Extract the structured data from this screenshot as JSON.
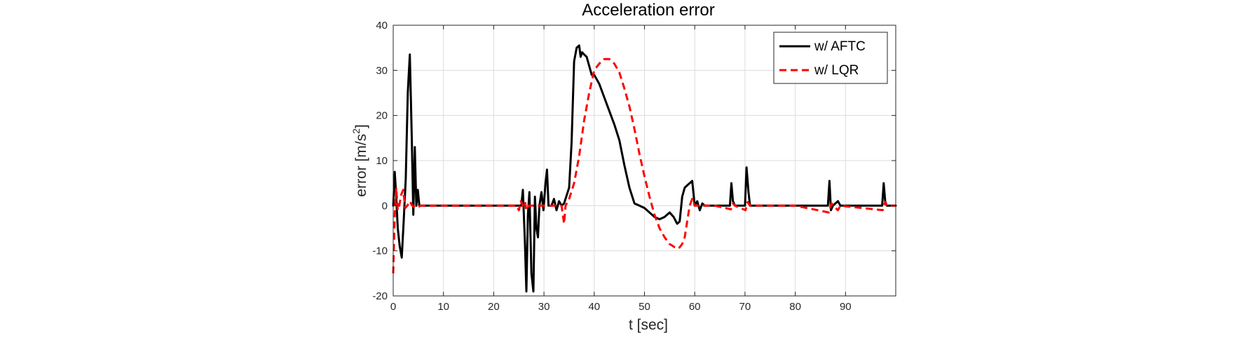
{
  "chart_data": {
    "type": "line",
    "title": "Acceleration error",
    "xlabel": "t [sec]",
    "ylabel": "error [m/s",
    "ylabel_sup": "2",
    "ylabel_close": "]",
    "xlim": [
      0,
      100
    ],
    "ylim": [
      -20,
      40
    ],
    "xticks": [
      0,
      10,
      20,
      30,
      40,
      50,
      60,
      70,
      80,
      90
    ],
    "yticks": [
      -20,
      -10,
      0,
      10,
      20,
      30,
      40
    ],
    "grid": true,
    "legend_position": "top-right",
    "series": [
      {
        "name": "w/ AFTC",
        "color": "#000000",
        "style": "solid",
        "points": [
          [
            0,
            0
          ],
          [
            0.3,
            7.5
          ],
          [
            0.6,
            2
          ],
          [
            0.9,
            -5
          ],
          [
            1.3,
            -9
          ],
          [
            1.7,
            -11.5
          ],
          [
            2.1,
            -3
          ],
          [
            2.5,
            6
          ],
          [
            2.9,
            25
          ],
          [
            3.3,
            33.5
          ],
          [
            3.7,
            15
          ],
          [
            4.0,
            -2
          ],
          [
            4.3,
            13
          ],
          [
            4.6,
            0
          ],
          [
            4.9,
            3.5
          ],
          [
            5.2,
            0
          ],
          [
            8,
            0
          ],
          [
            12,
            0
          ],
          [
            16,
            0
          ],
          [
            20,
            0
          ],
          [
            24,
            0
          ],
          [
            25.5,
            0
          ],
          [
            25.8,
            3.5
          ],
          [
            26.2,
            -8
          ],
          [
            26.5,
            -19
          ],
          [
            26.8,
            -2
          ],
          [
            27.1,
            3
          ],
          [
            27.5,
            -15
          ],
          [
            27.9,
            -19
          ],
          [
            28.2,
            2
          ],
          [
            28.5,
            -5
          ],
          [
            28.8,
            -7
          ],
          [
            29.1,
            0
          ],
          [
            29.5,
            3
          ],
          [
            29.9,
            -1
          ],
          [
            30.3,
            5
          ],
          [
            30.6,
            8
          ],
          [
            30.9,
            0
          ],
          [
            31.5,
            0
          ],
          [
            32,
            1.5
          ],
          [
            32.5,
            -1
          ],
          [
            33,
            1
          ],
          [
            33.5,
            0
          ],
          [
            34,
            0.5
          ],
          [
            35.0,
            4
          ],
          [
            35.5,
            14
          ],
          [
            36.0,
            32
          ],
          [
            36.5,
            35
          ],
          [
            37.0,
            35.5
          ],
          [
            37.3,
            33
          ],
          [
            37.6,
            34
          ],
          [
            38.0,
            33.5
          ],
          [
            38.5,
            33
          ],
          [
            39.0,
            31
          ],
          [
            39.5,
            29
          ],
          [
            40.0,
            29
          ],
          [
            41.0,
            27
          ],
          [
            42.0,
            24
          ],
          [
            43.0,
            21
          ],
          [
            44.0,
            18
          ],
          [
            45.0,
            14.5
          ],
          [
            46.0,
            9
          ],
          [
            47.0,
            4
          ],
          [
            48.0,
            0.5
          ],
          [
            49.0,
            0
          ],
          [
            50.0,
            -0.5
          ],
          [
            51.0,
            -1.5
          ],
          [
            52.0,
            -2.5
          ],
          [
            53.0,
            -3
          ],
          [
            54.0,
            -2.5
          ],
          [
            55.0,
            -1.5
          ],
          [
            55.8,
            -2.5
          ],
          [
            56.5,
            -4
          ],
          [
            57.0,
            -3.5
          ],
          [
            57.5,
            2
          ],
          [
            58.0,
            4
          ],
          [
            58.5,
            4.5
          ],
          [
            59.0,
            5
          ],
          [
            59.5,
            5.5
          ],
          [
            60.0,
            0
          ],
          [
            60.5,
            1
          ],
          [
            61.0,
            -1
          ],
          [
            61.5,
            0.5
          ],
          [
            62.0,
            0
          ],
          [
            66,
            0
          ],
          [
            67.0,
            0
          ],
          [
            67.3,
            5
          ],
          [
            67.6,
            1
          ],
          [
            68,
            0
          ],
          [
            70.0,
            0
          ],
          [
            70.3,
            8.5
          ],
          [
            70.7,
            3
          ],
          [
            71.0,
            0
          ],
          [
            75,
            0
          ],
          [
            80,
            0
          ],
          [
            86.5,
            0
          ],
          [
            86.8,
            5.5
          ],
          [
            87.1,
            -1
          ],
          [
            87.5,
            0
          ],
          [
            88.5,
            1
          ],
          [
            89,
            0
          ],
          [
            94,
            0
          ],
          [
            97.3,
            0
          ],
          [
            97.6,
            5
          ],
          [
            97.9,
            1
          ],
          [
            98.2,
            0
          ],
          [
            100,
            0
          ]
        ]
      },
      {
        "name": "w/ LQR",
        "color": "#ff0000",
        "style": "dashed",
        "points": [
          [
            0,
            -15
          ],
          [
            0.3,
            -2
          ],
          [
            0.6,
            4
          ],
          [
            0.9,
            -1
          ],
          [
            1.2,
            0
          ],
          [
            1.6,
            2.5
          ],
          [
            2.0,
            3.5
          ],
          [
            2.4,
            -0.5
          ],
          [
            2.8,
            0
          ],
          [
            3.3,
            1
          ],
          [
            3.8,
            0
          ],
          [
            4.5,
            -0.5
          ],
          [
            5.5,
            0
          ],
          [
            10,
            0
          ],
          [
            15,
            0
          ],
          [
            20,
            0
          ],
          [
            24.5,
            0
          ],
          [
            25.0,
            -1
          ],
          [
            25.4,
            1
          ],
          [
            25.8,
            0
          ],
          [
            26.2,
            1
          ],
          [
            26.5,
            -1
          ],
          [
            27.0,
            0
          ],
          [
            30,
            0
          ],
          [
            33.5,
            0
          ],
          [
            34.0,
            -4
          ],
          [
            34.3,
            0
          ],
          [
            35,
            1.5
          ],
          [
            36,
            5
          ],
          [
            37,
            11
          ],
          [
            38,
            19
          ],
          [
            39,
            25
          ],
          [
            40,
            30
          ],
          [
            41,
            31.5
          ],
          [
            42,
            32.5
          ],
          [
            43,
            32.5
          ],
          [
            44,
            31.5
          ],
          [
            45,
            29.5
          ],
          [
            46,
            26
          ],
          [
            47,
            22
          ],
          [
            48,
            17
          ],
          [
            49,
            11.5
          ],
          [
            50,
            6.5
          ],
          [
            51,
            2
          ],
          [
            52,
            -2
          ],
          [
            53,
            -5
          ],
          [
            54,
            -7
          ],
          [
            55,
            -8.5
          ],
          [
            56,
            -9.2
          ],
          [
            56.8,
            -9.5
          ],
          [
            57.5,
            -8.5
          ],
          [
            58,
            -7
          ],
          [
            58.5,
            -3.5
          ],
          [
            59,
            0
          ],
          [
            59.5,
            1.5
          ],
          [
            60,
            0
          ],
          [
            61,
            0
          ],
          [
            62,
            0
          ],
          [
            64,
            0
          ],
          [
            67.2,
            -0.8
          ],
          [
            67.6,
            0.5
          ],
          [
            68,
            0
          ],
          [
            70.1,
            -1
          ],
          [
            70.5,
            0.8
          ],
          [
            71,
            0
          ],
          [
            80,
            0
          ],
          [
            86.7,
            -1.5
          ],
          [
            87.2,
            0.5
          ],
          [
            88.5,
            -1
          ],
          [
            89,
            0
          ],
          [
            97.4,
            -1
          ],
          [
            97.9,
            0.8
          ],
          [
            98.2,
            0
          ],
          [
            100,
            0
          ]
        ]
      }
    ]
  }
}
